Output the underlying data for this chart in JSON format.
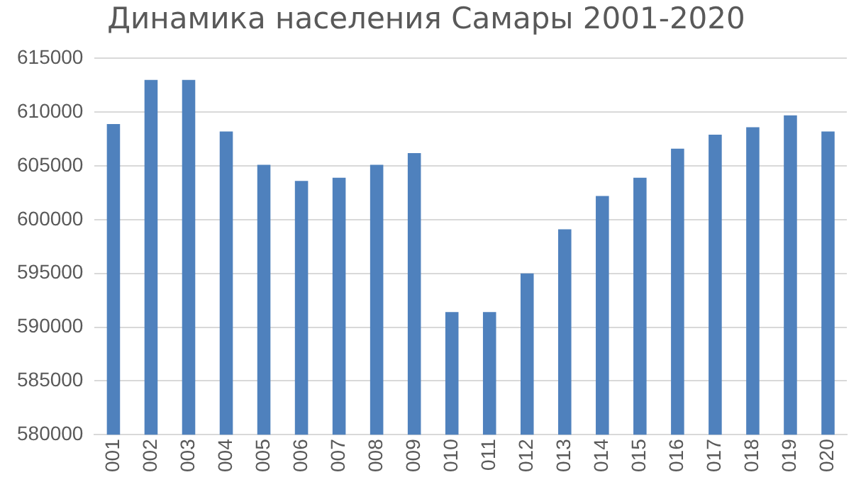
{
  "chart_data": {
    "type": "bar",
    "title": "Динамика населения Самары 2001-2020",
    "categories": [
      "001",
      "002",
      "003",
      "004",
      "005",
      "006",
      "007",
      "008",
      "009",
      "010",
      "011",
      "012",
      "013",
      "014",
      "015",
      "016",
      "017",
      "018",
      "019",
      "020"
    ],
    "values": [
      608900,
      613000,
      613000,
      608200,
      605100,
      603600,
      603900,
      605100,
      606200,
      591400,
      591400,
      595000,
      599100,
      602200,
      603900,
      606600,
      607900,
      608600,
      609700,
      608200
    ],
    "color": "#4f81bd",
    "ylim": [
      580000,
      615000
    ],
    "yticks": [
      580000,
      585000,
      590000,
      595000,
      600000,
      605000,
      610000,
      615000
    ],
    "grid": "y"
  }
}
